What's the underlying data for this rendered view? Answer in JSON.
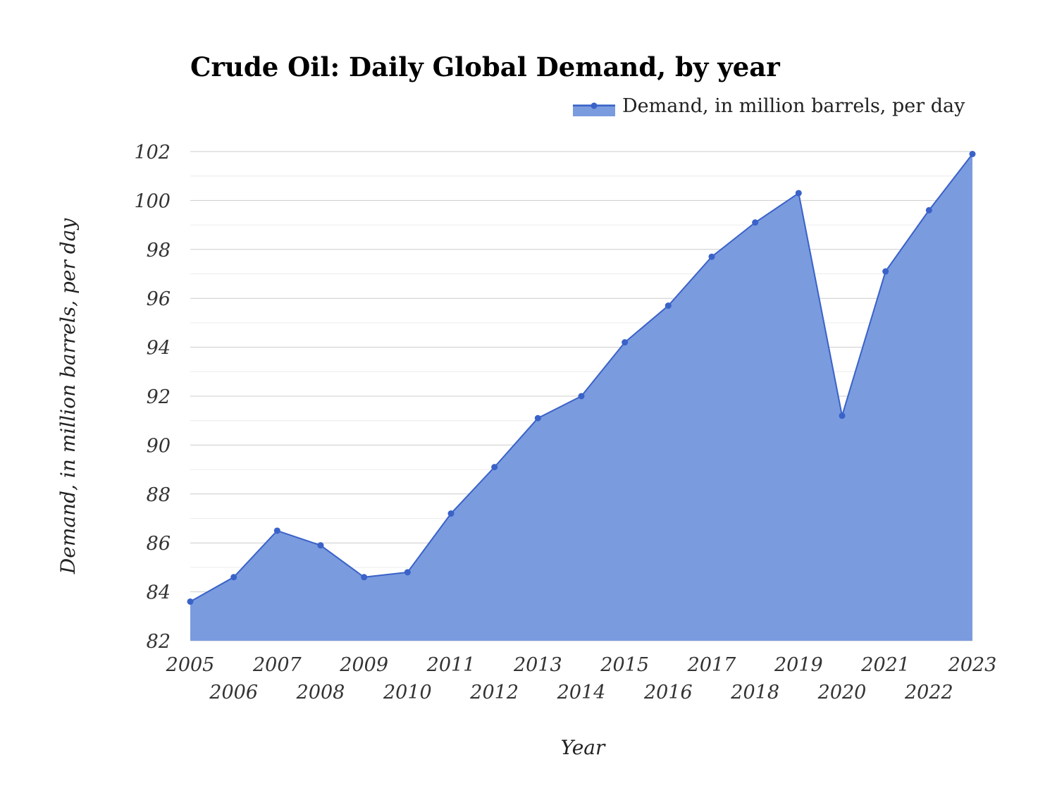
{
  "chart_data": {
    "type": "area",
    "title": "Crude Oil: Daily Global Demand, by year",
    "xlabel": "Year",
    "ylabel": "Demand, in million barrels, per day",
    "categories": [
      "2005",
      "2006",
      "2007",
      "2008",
      "2009",
      "2010",
      "2011",
      "2012",
      "2013",
      "2014",
      "2015",
      "2016",
      "2017",
      "2018",
      "2019",
      "2020",
      "2021",
      "2022",
      "2023"
    ],
    "series": [
      {
        "name": "Demand, in million barrels, per day",
        "values": [
          83.6,
          84.6,
          86.5,
          85.9,
          84.6,
          84.8,
          87.2,
          89.1,
          91.1,
          92.0,
          94.2,
          95.7,
          97.7,
          99.1,
          100.3,
          91.2,
          97.1,
          99.6,
          101.9
        ]
      }
    ],
    "ylim": [
      82,
      102
    ],
    "yticks": [
      "82",
      "84",
      "86",
      "88",
      "90",
      "92",
      "94",
      "96",
      "98",
      "100",
      "102"
    ],
    "grid": true,
    "legend_position": "top-right",
    "colors": {
      "fill": "#7a9bde",
      "line": "#3a62c8",
      "marker": "#3a62c8"
    }
  }
}
